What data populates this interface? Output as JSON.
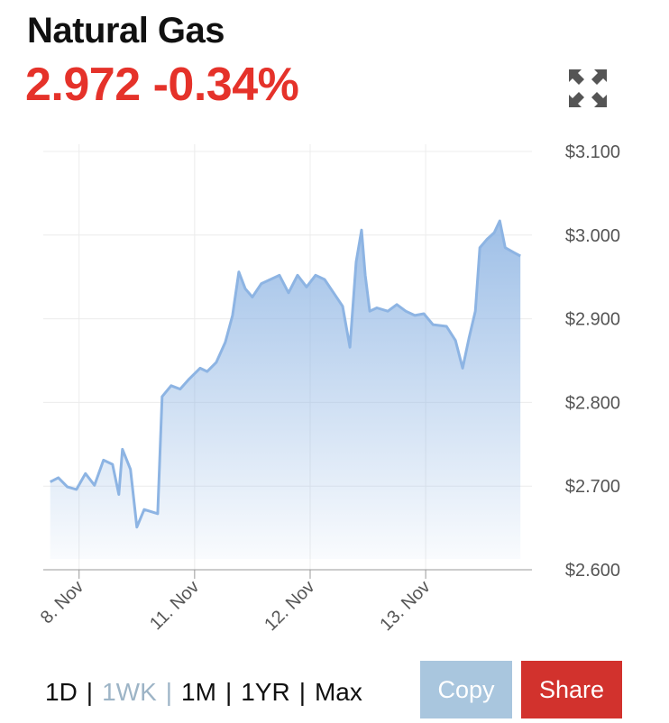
{
  "header": {
    "title": "Natural Gas",
    "price": "2.972",
    "change": "-0.34%"
  },
  "chart_data": {
    "type": "area",
    "x": [
      -0.25,
      -0.18,
      -0.102,
      -0.023,
      0.055,
      0.133,
      0.211,
      0.289,
      0.344,
      0.375,
      0.445,
      0.5,
      0.563,
      0.68,
      0.719,
      0.797,
      0.875,
      0.953,
      1.047,
      1.109,
      1.188,
      1.266,
      1.328,
      1.383,
      1.438,
      1.5,
      1.578,
      1.656,
      1.734,
      1.813,
      1.891,
      1.969,
      2.047,
      2.125,
      2.203,
      2.281,
      2.344,
      2.398,
      2.445,
      2.477,
      2.516,
      2.578,
      2.672,
      2.75,
      2.828,
      2.906,
      2.984,
      3.063,
      3.18,
      3.258,
      3.32,
      3.375,
      3.43,
      3.469,
      3.531,
      3.594,
      3.641,
      3.688,
      3.766,
      3.82
    ],
    "series": [
      {
        "color": "#8db4e3",
        "values": [
          2.705,
          2.71,
          2.699,
          2.696,
          2.715,
          2.701,
          2.731,
          2.726,
          2.69,
          2.744,
          2.72,
          2.651,
          2.672,
          2.667,
          2.807,
          2.82,
          2.816,
          2.828,
          2.841,
          2.837,
          2.848,
          2.872,
          2.904,
          2.956,
          2.936,
          2.926,
          2.942,
          2.947,
          2.952,
          2.931,
          2.952,
          2.938,
          2.952,
          2.947,
          2.931,
          2.915,
          2.866,
          2.968,
          3.006,
          2.952,
          2.909,
          2.913,
          2.909,
          2.917,
          2.909,
          2.904,
          2.906,
          2.893,
          2.891,
          2.874,
          2.841,
          2.877,
          2.909,
          2.985,
          2.995,
          3.003,
          3.017,
          2.985,
          2.979,
          2.975
        ]
      }
    ],
    "xlim": [
      -0.31,
      3.92
    ],
    "xticks": [
      {
        "value": 0,
        "label": "8. Nov"
      },
      {
        "value": 1,
        "label": "11. Nov"
      },
      {
        "value": 2,
        "label": "12. Nov"
      },
      {
        "value": 3,
        "label": "13. Nov"
      }
    ],
    "ylim": [
      2.6,
      3.1
    ],
    "yticks": [
      {
        "value": 2.6,
        "label": "$2.600"
      },
      {
        "value": 2.7,
        "label": "$2.700"
      },
      {
        "value": 2.8,
        "label": "$2.800"
      },
      {
        "value": 2.9,
        "label": "$2.900"
      },
      {
        "value": 3.0,
        "label": "$3.000"
      },
      {
        "value": 3.1,
        "label": "$3.100"
      }
    ],
    "grid": true
  },
  "controls": {
    "ranges": [
      "1D",
      "1WK",
      "1M",
      "1YR",
      "Max"
    ],
    "active_range": "1WK",
    "separator": "|",
    "copy": "Copy",
    "share": "Share"
  }
}
